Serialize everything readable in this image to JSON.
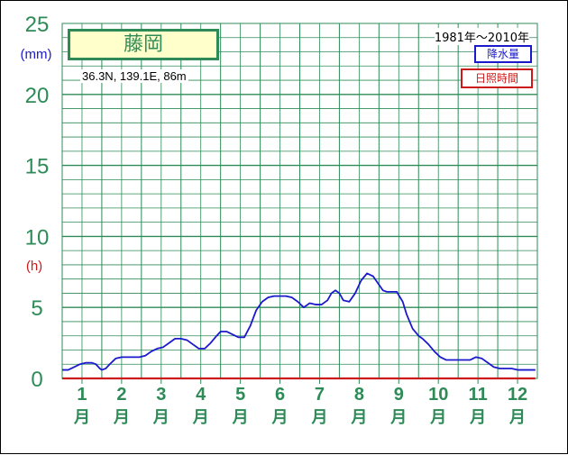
{
  "chart_data": {
    "type": "line",
    "station": "藤岡",
    "coordinates": "36.3N,  139.1E,  86m",
    "period": "1981年～2010年",
    "legend": [
      "降水量",
      "日照時間"
    ],
    "y_units": [
      "(mm)",
      "(h)"
    ],
    "ylim": [
      0,
      25
    ],
    "yticks": [
      "0",
      "5",
      "10",
      "15",
      "20",
      "25"
    ],
    "categories": [
      "1",
      "2",
      "3",
      "4",
      "5",
      "6",
      "7",
      "8",
      "9",
      "10",
      "11",
      "12"
    ],
    "month_suffix": "月",
    "grid": true,
    "series": [
      {
        "name": "降水量",
        "color": "#1a1acc",
        "x": [
          0,
          0.15,
          0.3,
          0.45,
          0.6,
          0.75,
          0.85,
          0.95,
          1.0,
          1.1,
          1.2,
          1.35,
          1.5,
          1.65,
          1.8,
          1.95,
          2.1,
          2.25,
          2.4,
          2.55,
          2.7,
          2.85,
          3.0,
          3.15,
          3.3,
          3.45,
          3.6,
          3.75,
          3.9,
          4.0,
          4.15,
          4.3,
          4.45,
          4.6,
          4.75,
          4.9,
          5.05,
          5.2,
          5.35,
          5.5,
          5.65,
          5.8,
          5.95,
          6.1,
          6.25,
          6.4,
          6.55,
          6.7,
          6.8,
          6.9,
          7.0,
          7.1,
          7.25,
          7.4,
          7.55,
          7.7,
          7.85,
          8.0,
          8.1,
          8.2,
          8.3,
          8.45,
          8.6,
          8.7,
          8.85,
          9.0,
          9.1,
          9.25,
          9.4,
          9.55,
          9.7,
          9.85,
          10.0,
          10.15,
          10.3,
          10.45,
          10.6,
          10.75,
          10.9,
          11.05,
          11.2,
          11.35,
          11.5,
          11.65,
          11.8,
          11.95
        ],
        "values": [
          0.6,
          0.6,
          0.8,
          1.0,
          1.1,
          1.1,
          1.0,
          0.7,
          0.6,
          0.7,
          1.0,
          1.4,
          1.5,
          1.5,
          1.5,
          1.5,
          1.6,
          1.9,
          2.1,
          2.2,
          2.5,
          2.8,
          2.8,
          2.7,
          2.4,
          2.1,
          2.1,
          2.5,
          3.0,
          3.3,
          3.3,
          3.1,
          2.9,
          2.9,
          3.7,
          4.8,
          5.4,
          5.7,
          5.8,
          5.8,
          5.8,
          5.7,
          5.4,
          5.0,
          5.3,
          5.2,
          5.2,
          5.5,
          6.0,
          6.2,
          6.0,
          5.5,
          5.4,
          6.0,
          6.9,
          7.4,
          7.2,
          6.6,
          6.2,
          6.1,
          6.1,
          6.1,
          5.4,
          4.5,
          3.5,
          3.0,
          2.8,
          2.4,
          1.9,
          1.5,
          1.3,
          1.3,
          1.3,
          1.3,
          1.3,
          1.5,
          1.4,
          1.1,
          0.8,
          0.7,
          0.7,
          0.7,
          0.6,
          0.6,
          0.6,
          0.6
        ]
      },
      {
        "name": "日照時間",
        "color": "#cc1a1a",
        "x": [
          0,
          11.95
        ],
        "values": [
          0,
          0
        ]
      }
    ]
  }
}
